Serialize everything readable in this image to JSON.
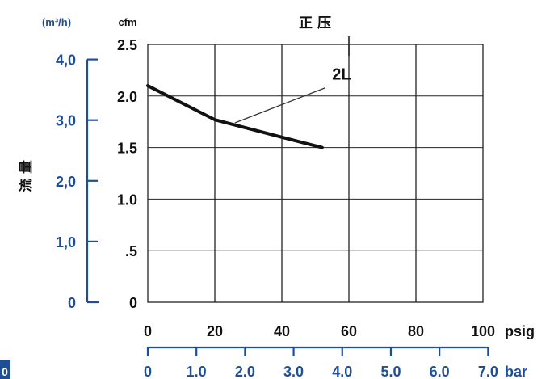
{
  "chart_data": {
    "type": "line",
    "title": "正 压",
    "ylabel": "流 量",
    "y_unit_primary": "cfm",
    "y_unit_secondary": "(m³/h)",
    "x_unit_primary": "psig",
    "x_unit_secondary": "bar",
    "xlim": [
      0,
      100
    ],
    "ylim": [
      0,
      2.5
    ],
    "grid": true,
    "x_ticks": [
      "0",
      "20",
      "40",
      "60",
      "80",
      "100"
    ],
    "x_values": [
      0,
      20,
      40,
      60,
      80,
      100
    ],
    "y_ticks": [
      "0",
      ".5",
      "1.0",
      "1.5",
      "2.0",
      "2.5"
    ],
    "y_values": [
      0,
      0.5,
      1.0,
      1.5,
      2.0,
      2.5
    ],
    "y2_ticks": [
      "0",
      "1,0",
      "2,0",
      "3,0",
      "4,0"
    ],
    "y2_values": [
      0,
      1.0,
      2.0,
      3.0,
      4.0
    ],
    "bar_ticks": [
      "0",
      "1.0",
      "2.0",
      "3.0",
      "4.0",
      "5.0",
      "6.0",
      "7.0"
    ],
    "bar_values": [
      0,
      1.0,
      2.0,
      3.0,
      4.0,
      5.0,
      6.0,
      7.0
    ],
    "series": [
      {
        "name": "2L",
        "x": [
          0,
          20,
          40,
          52
        ],
        "y": [
          2.1,
          1.77,
          1.6,
          1.5
        ]
      }
    ],
    "colors": {
      "blue_axis": "#1f4e99",
      "line": "#111111",
      "grid": "#222222"
    }
  },
  "corner_fragment": "0"
}
